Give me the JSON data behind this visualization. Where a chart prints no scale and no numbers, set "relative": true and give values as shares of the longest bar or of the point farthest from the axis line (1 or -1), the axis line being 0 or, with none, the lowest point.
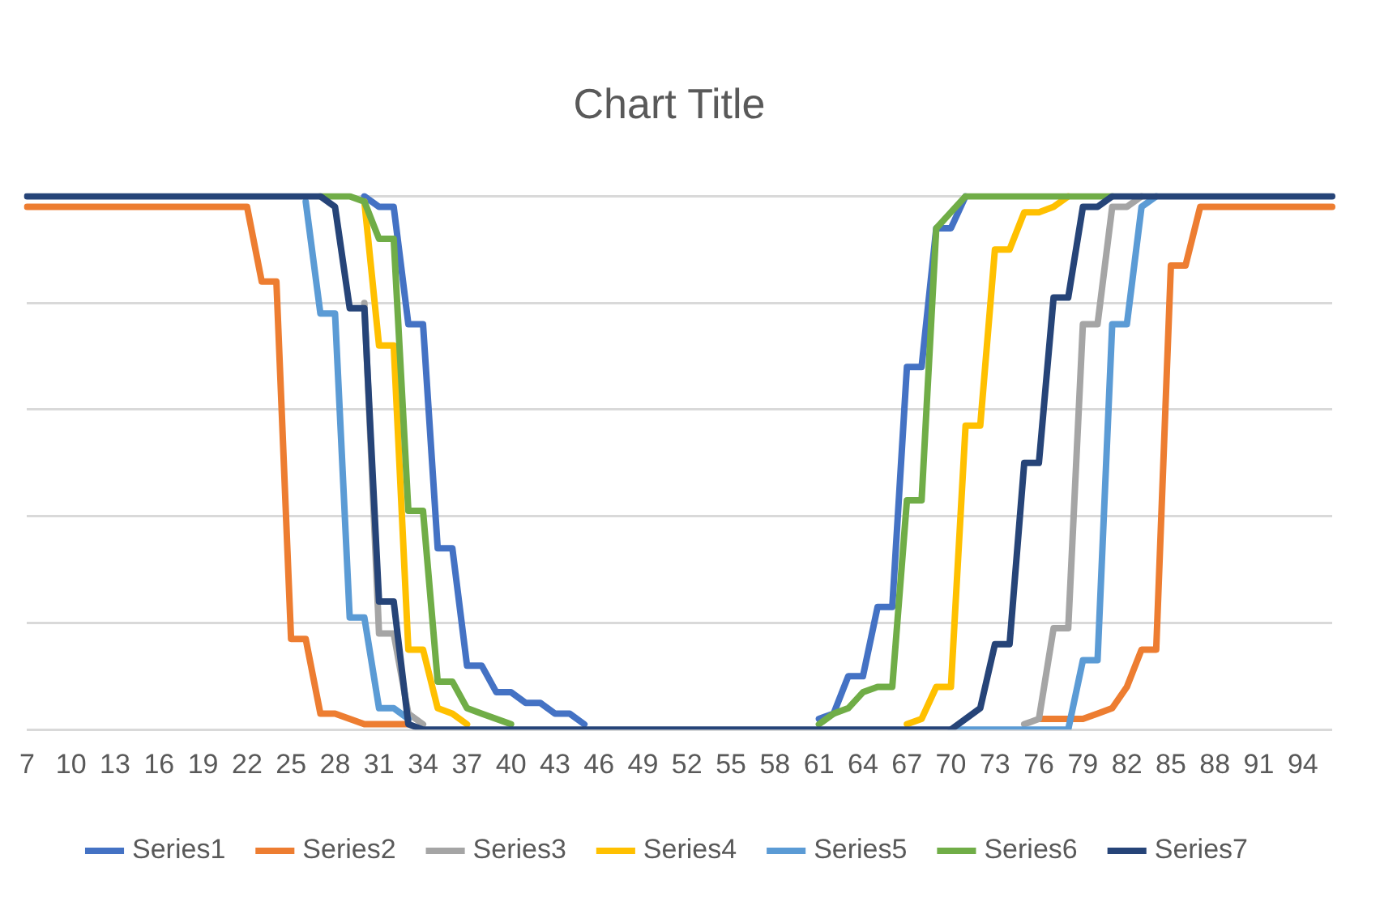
{
  "chart_data": {
    "type": "line",
    "title": "Chart Title",
    "relative": true,
    "grid": "y",
    "legend": "bottom",
    "marker": "none",
    "line_style": "solid",
    "categories": [
      "7",
      null,
      null,
      "10",
      null,
      null,
      "13",
      null,
      null,
      "16",
      null,
      null,
      "19",
      null,
      null,
      "22",
      null,
      null,
      "25",
      null,
      null,
      "28",
      null,
      null,
      "31",
      null,
      null,
      "34",
      null,
      null,
      "37",
      null,
      null,
      "40",
      null,
      null,
      "43",
      null,
      null,
      "46",
      null,
      null,
      "49",
      null,
      null,
      "52",
      null,
      null,
      "55",
      null,
      null,
      "58",
      null,
      null,
      "61",
      null,
      null,
      "64",
      null,
      null,
      "67",
      null,
      null,
      "70",
      null,
      null,
      "73",
      null,
      null,
      "76",
      null,
      null,
      "79",
      null,
      null,
      "82",
      null,
      null,
      "85",
      null,
      null,
      "88",
      null,
      null,
      "91",
      null,
      null,
      "94",
      null,
      null
    ],
    "series": [
      {
        "name": "Series1",
        "color": "#4472c4",
        "values": [
          null,
          null,
          null,
          null,
          null,
          null,
          null,
          null,
          null,
          null,
          null,
          null,
          null,
          null,
          null,
          null,
          null,
          null,
          null,
          null,
          null,
          null,
          null,
          1,
          0.98,
          0.98,
          0.76,
          0.76,
          0.34,
          0.34,
          0.12,
          0.12,
          0.07,
          0.07,
          0.05,
          0.05,
          0.03,
          0.03,
          0.01,
          null,
          null,
          null,
          null,
          null,
          null,
          null,
          null,
          null,
          null,
          null,
          null,
          null,
          null,
          null,
          0.02,
          0.03,
          0.1,
          0.1,
          0.23,
          0.23,
          0.68,
          0.68,
          0.94,
          0.94,
          1,
          null,
          null,
          null,
          null,
          null,
          null,
          null,
          null,
          null,
          null,
          null,
          null,
          null,
          null,
          null,
          null,
          null,
          null,
          null,
          null,
          null,
          null,
          null,
          null,
          null
        ]
      },
      {
        "name": "Series2",
        "color": "#ed7d31",
        "values": [
          0.98,
          0.98,
          0.98,
          0.98,
          0.98,
          0.98,
          0.98,
          0.98,
          0.98,
          0.98,
          0.98,
          0.98,
          0.98,
          0.98,
          0.98,
          0.98,
          0.84,
          0.84,
          0.17,
          0.17,
          0.03,
          0.03,
          0.02,
          0.01,
          0.01,
          0.01,
          0.01,
          null,
          null,
          null,
          null,
          null,
          null,
          null,
          null,
          null,
          null,
          null,
          null,
          null,
          null,
          null,
          null,
          null,
          null,
          null,
          null,
          null,
          null,
          null,
          null,
          null,
          null,
          null,
          null,
          null,
          null,
          null,
          null,
          null,
          null,
          null,
          null,
          null,
          null,
          null,
          null,
          null,
          null,
          0.02,
          0.02,
          0.02,
          0.02,
          0.03,
          0.04,
          0.08,
          0.15,
          0.15,
          0.87,
          0.87,
          0.98,
          0.98,
          0.98,
          0.98,
          0.98,
          0.98,
          0.98,
          0.98,
          0.98,
          0.98
        ]
      },
      {
        "name": "Series3",
        "color": "#a5a5a5",
        "values": [
          null,
          null,
          null,
          null,
          null,
          null,
          null,
          null,
          null,
          null,
          null,
          null,
          null,
          null,
          null,
          null,
          null,
          null,
          null,
          null,
          null,
          null,
          null,
          0.8,
          0.18,
          0.18,
          0.03,
          0.01,
          null,
          null,
          null,
          null,
          null,
          null,
          null,
          null,
          null,
          null,
          null,
          null,
          null,
          null,
          null,
          null,
          null,
          null,
          null,
          null,
          null,
          null,
          null,
          null,
          null,
          null,
          null,
          null,
          null,
          null,
          null,
          null,
          null,
          null,
          null,
          null,
          null,
          null,
          null,
          null,
          0.01,
          0.02,
          0.19,
          0.19,
          0.76,
          0.76,
          0.98,
          0.98,
          1,
          null,
          null,
          null,
          null,
          null,
          null,
          null,
          null,
          null,
          null,
          null,
          null,
          null
        ]
      },
      {
        "name": "Series4",
        "color": "#ffc000",
        "values": [
          null,
          null,
          null,
          null,
          null,
          null,
          null,
          null,
          null,
          null,
          null,
          null,
          null,
          null,
          null,
          null,
          null,
          null,
          null,
          null,
          null,
          null,
          null,
          0.99,
          0.72,
          0.72,
          0.15,
          0.15,
          0.04,
          0.03,
          0.01,
          null,
          null,
          null,
          null,
          null,
          null,
          null,
          null,
          null,
          null,
          null,
          null,
          null,
          null,
          null,
          null,
          null,
          null,
          null,
          null,
          null,
          null,
          null,
          null,
          null,
          null,
          null,
          null,
          null,
          0.01,
          0.02,
          0.08,
          0.08,
          0.57,
          0.57,
          0.9,
          0.9,
          0.97,
          0.97,
          0.98,
          1,
          null,
          null,
          null,
          null,
          null,
          null,
          null,
          null,
          null,
          null,
          null,
          null,
          null,
          null,
          null,
          null,
          null,
          null
        ]
      },
      {
        "name": "Series5",
        "color": "#5b9bd5",
        "values": [
          null,
          null,
          null,
          null,
          null,
          null,
          null,
          null,
          null,
          null,
          null,
          null,
          null,
          null,
          null,
          null,
          null,
          null,
          null,
          0.99,
          0.78,
          0.78,
          0.21,
          0.21,
          0.04,
          0.04,
          0.02,
          null,
          null,
          null,
          null,
          null,
          null,
          null,
          null,
          null,
          null,
          null,
          null,
          null,
          null,
          null,
          null,
          null,
          null,
          null,
          null,
          null,
          null,
          null,
          null,
          null,
          null,
          null,
          null,
          null,
          null,
          null,
          null,
          null,
          null,
          null,
          null,
          0,
          0,
          0,
          0,
          0,
          0,
          0,
          0,
          0,
          0.13,
          0.13,
          0.76,
          0.76,
          0.98,
          1,
          null,
          null,
          null,
          null,
          null,
          null,
          null,
          null,
          null,
          null,
          null,
          null
        ]
      },
      {
        "name": "Series6",
        "color": "#70ad47",
        "values": [
          null,
          null,
          null,
          null,
          null,
          null,
          null,
          null,
          null,
          null,
          null,
          null,
          null,
          null,
          null,
          null,
          null,
          null,
          null,
          null,
          1,
          1,
          1,
          0.99,
          0.92,
          0.92,
          0.41,
          0.41,
          0.09,
          0.09,
          0.04,
          0.03,
          0.02,
          0.01,
          null,
          null,
          null,
          null,
          null,
          null,
          null,
          null,
          null,
          null,
          null,
          null,
          null,
          null,
          null,
          null,
          null,
          null,
          null,
          null,
          0.01,
          0.03,
          0.04,
          0.07,
          0.08,
          0.08,
          0.43,
          0.43,
          0.94,
          0.97,
          1,
          1,
          1,
          1,
          1,
          1,
          1,
          1,
          1,
          1,
          1,
          null,
          null,
          null,
          null,
          null,
          null,
          null,
          null,
          null,
          null,
          null,
          null,
          null,
          null,
          null
        ]
      },
      {
        "name": "Series7",
        "color": "#264478",
        "values": [
          1,
          1,
          1,
          1,
          1,
          1,
          1,
          1,
          1,
          1,
          1,
          1,
          1,
          1,
          1,
          1,
          1,
          1,
          1,
          1,
          1,
          0.98,
          0.79,
          0.79,
          0.24,
          0.24,
          0.01,
          0,
          0,
          0,
          0,
          0,
          0,
          0,
          0,
          0,
          0,
          0,
          0,
          0,
          0,
          0,
          0,
          0,
          0,
          0,
          0,
          0,
          0,
          0,
          0,
          0,
          0,
          0,
          0,
          0,
          0,
          0,
          0,
          0,
          0,
          0,
          0,
          0,
          0.02,
          0.04,
          0.16,
          0.16,
          0.5,
          0.5,
          0.81,
          0.81,
          0.98,
          0.98,
          1,
          1,
          1,
          1,
          1,
          1,
          1,
          1,
          1,
          1,
          1,
          1,
          1,
          1,
          1,
          1
        ]
      }
    ]
  }
}
